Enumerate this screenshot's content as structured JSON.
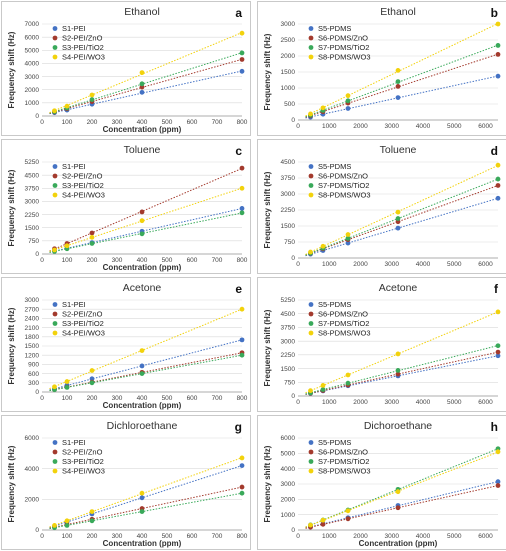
{
  "colors": {
    "series": [
      "#4472C4",
      "#A33A2D",
      "#39A95A",
      "#F2D20C"
    ],
    "grid": "#d9d9d9",
    "frame": "#c9c9c9"
  },
  "chart_data": [
    {
      "type": "scatter",
      "letter": "a",
      "title": "Ethanol",
      "xlabel": "Concentration (ppm)",
      "ylabel": "Frequency shift (Hz)",
      "xlim": [
        0,
        800
      ],
      "ylim": [
        0,
        7000
      ],
      "xticks": [
        0,
        100,
        200,
        300,
        400,
        500,
        600,
        700,
        800
      ],
      "yticks": [
        0,
        1000,
        2000,
        3000,
        4000,
        5000,
        6000,
        7000
      ],
      "x": [
        50,
        100,
        200,
        400,
        800
      ],
      "series": [
        {
          "name": "S1-PEI",
          "values": [
            250,
            450,
            900,
            1800,
            3400
          ]
        },
        {
          "name": "S2-PEI/ZnO",
          "values": [
            300,
            550,
            1100,
            2200,
            4300
          ]
        },
        {
          "name": "S3-PEI/TiO2",
          "values": [
            330,
            600,
            1250,
            2450,
            4800
          ]
        },
        {
          "name": "S4-PEI/WO3",
          "values": [
            400,
            750,
            1600,
            3300,
            6300
          ]
        }
      ]
    },
    {
      "type": "scatter",
      "letter": "b",
      "title": "Ethanol",
      "xlabel": "",
      "ylabel": "Frequency shift (Hz)",
      "xlim": [
        0,
        6400
      ],
      "ylim": [
        0,
        3000
      ],
      "xticks": [
        0,
        1000,
        2000,
        3000,
        4000,
        5000,
        6000
      ],
      "yticks": [
        0,
        500,
        1000,
        1500,
        2000,
        2500,
        3000
      ],
      "x": [
        400,
        800,
        1600,
        3200,
        6400
      ],
      "series": [
        {
          "name": "S5-PDMS",
          "values": [
            90,
            180,
            360,
            700,
            1370
          ]
        },
        {
          "name": "S6-PDMS/ZnO",
          "values": [
            130,
            260,
            530,
            1050,
            2050
          ]
        },
        {
          "name": "S7-PDMS/TiO2",
          "values": [
            150,
            300,
            600,
            1200,
            2330
          ]
        },
        {
          "name": "S8-PDMS/WO3",
          "values": [
            190,
            380,
            760,
            1550,
            3000
          ]
        }
      ]
    },
    {
      "type": "scatter",
      "letter": "c",
      "title": "Toluene",
      "xlabel": "Concentration (ppm)",
      "ylabel": "Frequency shift (Hz)",
      "xlim": [
        0,
        800
      ],
      "ylim": [
        0,
        5250
      ],
      "xticks": [
        0,
        100,
        200,
        300,
        400,
        500,
        600,
        700,
        800
      ],
      "yticks": [
        0,
        750,
        1500,
        2250,
        3000,
        3750,
        4500,
        5250
      ],
      "x": [
        50,
        100,
        200,
        400,
        800
      ],
      "series": [
        {
          "name": "S1-PEI",
          "values": [
            170,
            330,
            650,
            1300,
            2600
          ]
        },
        {
          "name": "S2-PEI/ZnO",
          "values": [
            300,
            600,
            1200,
            2400,
            4900
          ]
        },
        {
          "name": "S3-PEI/TiO2",
          "values": [
            150,
            300,
            600,
            1150,
            2350
          ]
        },
        {
          "name": "S4-PEI/WO3",
          "values": [
            230,
            470,
            950,
            1900,
            3750
          ]
        }
      ]
    },
    {
      "type": "scatter",
      "letter": "d",
      "title": "Toluene",
      "xlabel": "",
      "ylabel": "Frequency shift (Hz)",
      "xlim": [
        0,
        6400
      ],
      "ylim": [
        0,
        4500
      ],
      "xticks": [
        0,
        1000,
        2000,
        3000,
        4000,
        5000,
        6000
      ],
      "yticks": [
        0,
        750,
        1500,
        2250,
        3000,
        3750,
        4500
      ],
      "x": [
        400,
        800,
        1600,
        3200,
        6400
      ],
      "series": [
        {
          "name": "S5-PDMS",
          "values": [
            180,
            350,
            700,
            1400,
            2800
          ]
        },
        {
          "name": "S6-PDMS/ZnO",
          "values": [
            220,
            430,
            860,
            1700,
            3400
          ]
        },
        {
          "name": "S7-PDMS/TiO2",
          "values": [
            230,
            460,
            920,
            1850,
            3700
          ]
        },
        {
          "name": "S8-PDMS/WO3",
          "values": [
            280,
            550,
            1100,
            2150,
            4350
          ]
        }
      ]
    },
    {
      "type": "scatter",
      "letter": "e",
      "title": "Acetone",
      "xlabel": "Concentration (ppm)",
      "ylabel": "Frequency shift (Hz)",
      "xlim": [
        0,
        800
      ],
      "ylim": [
        0,
        3000
      ],
      "xticks": [
        0,
        100,
        200,
        300,
        400,
        500,
        600,
        700,
        800
      ],
      "yticks": [
        0,
        300,
        600,
        900,
        1200,
        1500,
        1800,
        2100,
        2400,
        2700,
        3000
      ],
      "x": [
        50,
        100,
        200,
        400,
        800
      ],
      "series": [
        {
          "name": "S1-PEI",
          "values": [
            100,
            220,
            430,
            850,
            1700
          ]
        },
        {
          "name": "S2-PEI/ZnO",
          "values": [
            80,
            160,
            320,
            640,
            1280
          ]
        },
        {
          "name": "S3-PEI/TiO2",
          "values": [
            75,
            150,
            300,
            600,
            1200
          ]
        },
        {
          "name": "S4-PEI/WO3",
          "values": [
            170,
            340,
            700,
            1350,
            2700
          ]
        }
      ]
    },
    {
      "type": "scatter",
      "letter": "f",
      "title": "Acetone",
      "xlabel": "",
      "ylabel": "Frequency shift (Hz)",
      "xlim": [
        0,
        6400
      ],
      "ylim": [
        0,
        5250
      ],
      "xticks": [
        0,
        1000,
        2000,
        3000,
        4000,
        5000,
        6000
      ],
      "yticks": [
        0,
        750,
        1500,
        2250,
        3000,
        3750,
        4500,
        5250
      ],
      "x": [
        400,
        800,
        1600,
        3200,
        6400
      ],
      "series": [
        {
          "name": "S5-PDMS",
          "values": [
            140,
            280,
            560,
            1100,
            2200
          ]
        },
        {
          "name": "S6-PDMS/ZnO",
          "values": [
            150,
            300,
            600,
            1200,
            2400
          ]
        },
        {
          "name": "S7-PDMS/TiO2",
          "values": [
            170,
            350,
            700,
            1400,
            2750
          ]
        },
        {
          "name": "S8-PDMS/WO3",
          "values": [
            290,
            580,
            1150,
            2300,
            4600
          ]
        }
      ]
    },
    {
      "type": "scatter",
      "letter": "g",
      "title": "Dichloroethane",
      "xlabel": "Concentration (ppm)",
      "ylabel": "Frequency shift (Hz)",
      "xlim": [
        0,
        800
      ],
      "ylim": [
        0,
        6000
      ],
      "xticks": [
        0,
        100,
        200,
        300,
        400,
        500,
        600,
        700,
        800
      ],
      "yticks": [
        0,
        2000,
        4000,
        6000
      ],
      "x": [
        50,
        100,
        200,
        400,
        800
      ],
      "series": [
        {
          "name": "S1-PEI",
          "values": [
            260,
            520,
            1050,
            2100,
            4200
          ]
        },
        {
          "name": "S2-PEI/ZnO",
          "values": [
            180,
            360,
            700,
            1400,
            2800
          ]
        },
        {
          "name": "S3-PEI/TiO2",
          "values": [
            150,
            300,
            600,
            1200,
            2400
          ]
        },
        {
          "name": "S4-PEI/WO3",
          "values": [
            300,
            600,
            1200,
            2400,
            4700
          ]
        }
      ]
    },
    {
      "type": "scatter",
      "letter": "h",
      "title": "Dichoroethane",
      "xlabel": "Concentration (ppm)",
      "ylabel": "Frequency shift (Hz)",
      "xlim": [
        0,
        6400
      ],
      "ylim": [
        0,
        6000
      ],
      "xticks": [
        0,
        1000,
        2000,
        3000,
        4000,
        5000,
        6000
      ],
      "yticks": [
        0,
        1000,
        2000,
        3000,
        4000,
        5000,
        6000
      ],
      "x": [
        400,
        800,
        1600,
        3200,
        6400
      ],
      "series": [
        {
          "name": "S5-PDMS",
          "values": [
            200,
            400,
            800,
            1600,
            3150
          ]
        },
        {
          "name": "S6-PDMS/ZnO",
          "values": [
            180,
            370,
            730,
            1450,
            2900
          ]
        },
        {
          "name": "S7-PDMS/TiO2",
          "values": [
            330,
            650,
            1300,
            2650,
            5300
          ]
        },
        {
          "name": "S8-PDMS/WO3",
          "values": [
            320,
            640,
            1250,
            2500,
            5100
          ]
        }
      ]
    }
  ]
}
